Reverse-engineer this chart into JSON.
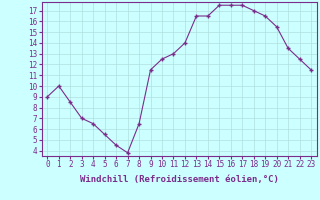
{
  "x": [
    0,
    1,
    2,
    3,
    4,
    5,
    6,
    7,
    8,
    9,
    10,
    11,
    12,
    13,
    14,
    15,
    16,
    17,
    18,
    19,
    20,
    21,
    22,
    23
  ],
  "y": [
    9,
    10,
    8.5,
    7,
    6.5,
    5.5,
    4.5,
    3.8,
    6.5,
    11.5,
    12.5,
    13,
    14,
    16.5,
    16.5,
    17.5,
    17.5,
    17.5,
    17,
    16.5,
    15.5,
    13.5,
    12.5,
    11.5
  ],
  "line_color": "#7b2d8b",
  "marker": "+",
  "marker_color": "#7b2d8b",
  "bg_color": "#ccffff",
  "grid_color": "#b0dede",
  "xlabel": "Windchill (Refroidissement éolien,°C)",
  "ylabel_ticks": [
    4,
    5,
    6,
    7,
    8,
    9,
    10,
    11,
    12,
    13,
    14,
    15,
    16,
    17
  ],
  "ylim": [
    3.5,
    17.8
  ],
  "xlim": [
    -0.5,
    23.5
  ],
  "xticks": [
    0,
    1,
    2,
    3,
    4,
    5,
    6,
    7,
    8,
    9,
    10,
    11,
    12,
    13,
    14,
    15,
    16,
    17,
    18,
    19,
    20,
    21,
    22,
    23
  ],
  "tick_label_fontsize": 5.5,
  "xlabel_fontsize": 6.5,
  "label_color": "#7b2d8b"
}
